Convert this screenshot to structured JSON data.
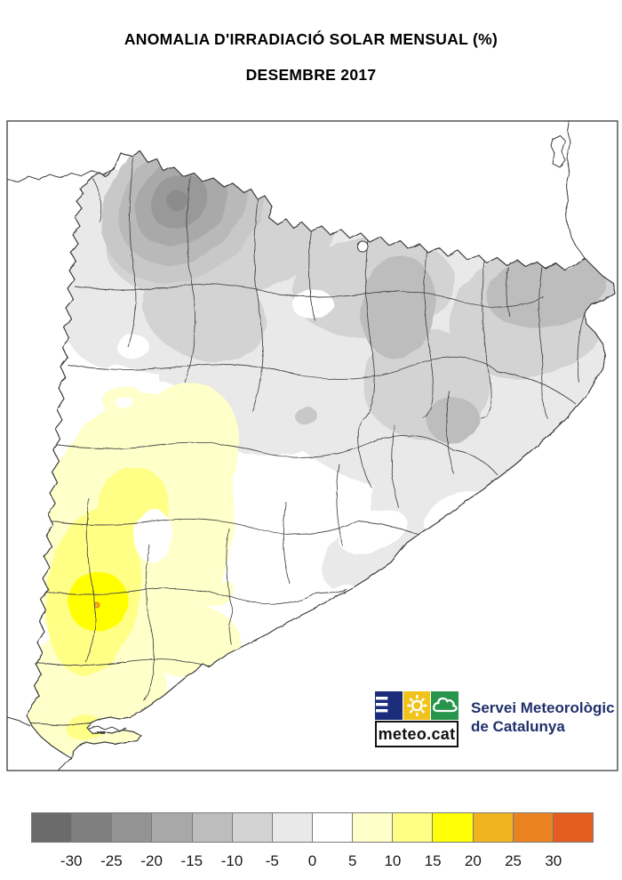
{
  "title": {
    "line1": "ANOMALIA D'IRRADIACIÓ SOLAR MENSUAL (%)",
    "line2": "DESEMBRE 2017"
  },
  "legend": {
    "tick_labels": [
      "-30",
      "-25",
      "-20",
      "-15",
      "-10",
      "-5",
      "0",
      "5",
      "10",
      "15",
      "20",
      "25",
      "30"
    ],
    "box_colors": [
      "#6b6b6b",
      "#7f7f7f",
      "#939393",
      "#a8a8a8",
      "#bdbdbd",
      "#d3d3d3",
      "#e9e9e9",
      "#ffffff",
      "#ffffc9",
      "#ffff85",
      "#ffff05",
      "#f0b41e",
      "#ea8220",
      "#e35c20"
    ],
    "unit": "%"
  },
  "logo": {
    "brand": "meteo.cat",
    "org_line1": "Servei Meteorològic",
    "org_line2": "de Catalunya",
    "square_colors": {
      "blue": "#1b2d7a",
      "yellow": "#efc319",
      "green": "#27964c"
    },
    "icons": [
      "menu-bars-icon",
      "sun-icon",
      "cloud-icon"
    ]
  }
}
